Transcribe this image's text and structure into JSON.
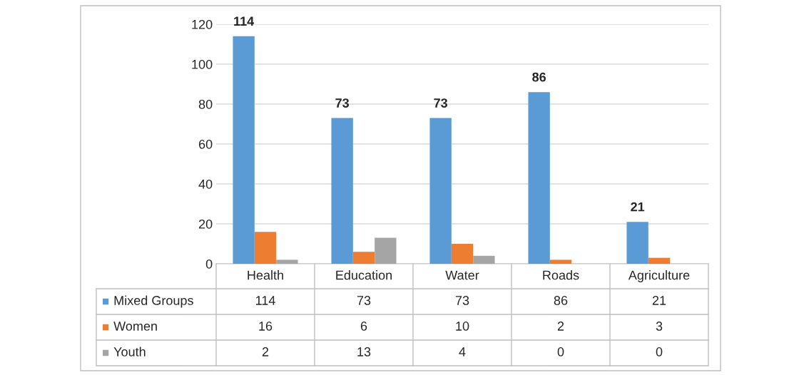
{
  "chart_data": {
    "type": "bar",
    "categories": [
      "Health",
      "Education",
      "Water",
      "Roads",
      "Agriculture"
    ],
    "series": [
      {
        "name": "Mixed Groups",
        "color": "#5b9bd5",
        "values": [
          114,
          73,
          73,
          86,
          21
        ]
      },
      {
        "name": "Women",
        "color": "#ed7d31",
        "values": [
          16,
          6,
          10,
          2,
          3
        ]
      },
      {
        "name": "Youth",
        "color": "#a5a5a5",
        "values": [
          2,
          13,
          4,
          0,
          0
        ]
      }
    ],
    "ylim": [
      0,
      120
    ],
    "yticks": [
      0,
      20,
      40,
      60,
      80,
      100,
      120
    ],
    "annotations": [
      "114",
      "73",
      "73",
      "86",
      "21"
    ],
    "grid": "y",
    "legend": "bottom",
    "data_labels": true
  }
}
